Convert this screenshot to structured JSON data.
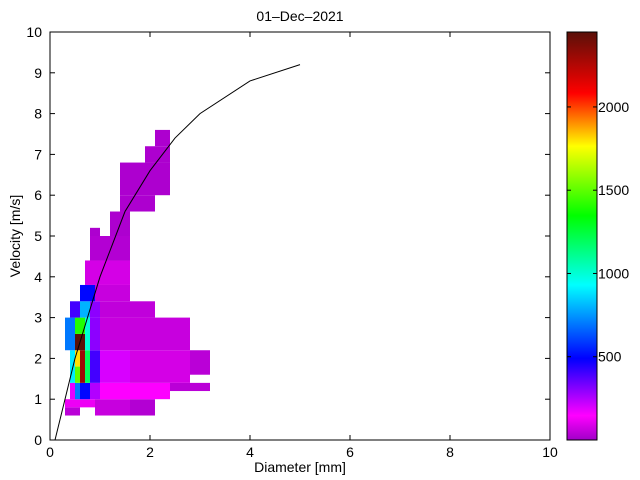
{
  "chart_data": {
    "type": "heatmap",
    "title": "01–Dec–2021",
    "xlabel": "Diameter [mm]",
    "ylabel": "Velocity [m/s]",
    "xlim": [
      0,
      10
    ],
    "ylim": [
      0,
      10
    ],
    "xticks": [
      "0",
      "2",
      "4",
      "6",
      "8",
      "10"
    ],
    "yticks": [
      "0",
      "1",
      "2",
      "3",
      "4",
      "5",
      "6",
      "7",
      "8",
      "9",
      "10"
    ],
    "grid": false,
    "colorbar": {
      "range": [
        0,
        2450
      ],
      "ticks": [
        "500",
        "1000",
        "1500",
        "2000"
      ],
      "tick_values": [
        500,
        1000,
        1500,
        2000
      ],
      "colormap": "hsv-magenta-to-darkred"
    },
    "cells": [
      {
        "d0": 0.3,
        "d1": 0.6,
        "v0": 0.6,
        "v1": 0.8,
        "count": 40
      },
      {
        "d0": 0.3,
        "d1": 0.9,
        "v0": 0.8,
        "v1": 1.0,
        "count": 120
      },
      {
        "d0": 0.9,
        "d1": 1.6,
        "v0": 0.6,
        "v1": 1.0,
        "count": 60
      },
      {
        "d0": 1.6,
        "d1": 2.1,
        "v0": 0.6,
        "v1": 1.0,
        "count": 30
      },
      {
        "d0": 0.4,
        "d1": 0.5,
        "v0": 1.0,
        "v1": 1.4,
        "count": 180
      },
      {
        "d0": 0.5,
        "d1": 0.6,
        "v0": 1.0,
        "v1": 1.4,
        "count": 700
      },
      {
        "d0": 0.6,
        "d1": 0.8,
        "v0": 1.0,
        "v1": 1.4,
        "count": 500
      },
      {
        "d0": 0.8,
        "d1": 1.0,
        "v0": 1.0,
        "v1": 1.4,
        "count": 250
      },
      {
        "d0": 1.0,
        "d1": 2.4,
        "v0": 1.0,
        "v1": 1.4,
        "count": 150
      },
      {
        "d0": 2.4,
        "d1": 3.2,
        "v0": 1.2,
        "v1": 1.4,
        "count": 40
      },
      {
        "d0": 0.4,
        "d1": 0.5,
        "v0": 1.4,
        "v1": 2.2,
        "count": 900
      },
      {
        "d0": 0.5,
        "d1": 0.6,
        "v0": 1.4,
        "v1": 1.8,
        "count": 1500
      },
      {
        "d0": 0.5,
        "d1": 0.6,
        "v0": 1.8,
        "v1": 2.2,
        "count": 1800
      },
      {
        "d0": 0.6,
        "d1": 0.7,
        "v0": 1.4,
        "v1": 2.2,
        "count": 2300
      },
      {
        "d0": 0.7,
        "d1": 0.8,
        "v0": 1.4,
        "v1": 2.2,
        "count": 1200
      },
      {
        "d0": 0.8,
        "d1": 1.0,
        "v0": 1.4,
        "v1": 2.2,
        "count": 400
      },
      {
        "d0": 1.0,
        "d1": 1.6,
        "v0": 1.4,
        "v1": 2.2,
        "count": 200
      },
      {
        "d0": 1.6,
        "d1": 2.8,
        "v0": 1.4,
        "v1": 2.2,
        "count": 80
      },
      {
        "d0": 2.8,
        "d1": 3.2,
        "v0": 1.6,
        "v1": 2.2,
        "count": 40
      },
      {
        "d0": 0.3,
        "d1": 0.5,
        "v0": 2.2,
        "v1": 3.0,
        "count": 700
      },
      {
        "d0": 0.5,
        "d1": 0.7,
        "v0": 2.2,
        "v1": 2.6,
        "count": 2450
      },
      {
        "d0": 0.5,
        "d1": 0.7,
        "v0": 2.6,
        "v1": 3.0,
        "count": 1400
      },
      {
        "d0": 0.7,
        "d1": 0.8,
        "v0": 2.2,
        "v1": 3.0,
        "count": 1000
      },
      {
        "d0": 0.8,
        "d1": 1.0,
        "v0": 2.2,
        "v1": 3.0,
        "count": 300
      },
      {
        "d0": 1.0,
        "d1": 2.8,
        "v0": 2.2,
        "v1": 3.0,
        "count": 60
      },
      {
        "d0": 0.4,
        "d1": 0.6,
        "v0": 3.0,
        "v1": 3.4,
        "count": 400
      },
      {
        "d0": 0.6,
        "d1": 0.8,
        "v0": 3.0,
        "v1": 3.4,
        "count": 800
      },
      {
        "d0": 0.8,
        "d1": 1.0,
        "v0": 3.0,
        "v1": 3.4,
        "count": 300
      },
      {
        "d0": 1.0,
        "d1": 2.1,
        "v0": 3.0,
        "v1": 3.4,
        "count": 50
      },
      {
        "d0": 0.6,
        "d1": 0.9,
        "v0": 3.4,
        "v1": 3.8,
        "count": 500
      },
      {
        "d0": 0.9,
        "d1": 1.6,
        "v0": 3.4,
        "v1": 3.8,
        "count": 60
      },
      {
        "d0": 0.7,
        "d1": 1.6,
        "v0": 3.8,
        "v1": 4.4,
        "count": 80
      },
      {
        "d0": 0.8,
        "d1": 1.6,
        "v0": 4.4,
        "v1": 5.0,
        "count": 30
      },
      {
        "d0": 0.8,
        "d1": 1.0,
        "v0": 5.0,
        "v1": 5.2,
        "count": 20
      },
      {
        "d0": 1.2,
        "d1": 1.6,
        "v0": 5.0,
        "v1": 5.6,
        "count": 20
      },
      {
        "d0": 1.4,
        "d1": 2.1,
        "v0": 5.6,
        "v1": 6.0,
        "count": 20
      },
      {
        "d0": 1.4,
        "d1": 2.4,
        "v0": 6.0,
        "v1": 6.8,
        "count": 20
      },
      {
        "d0": 1.9,
        "d1": 2.4,
        "v0": 6.8,
        "v1": 7.2,
        "count": 20
      },
      {
        "d0": 2.1,
        "d1": 2.4,
        "v0": 7.2,
        "v1": 7.6,
        "count": 20
      }
    ],
    "reference_curve": {
      "x": [
        0.1,
        0.3,
        0.5,
        0.75,
        1.0,
        1.25,
        1.5,
        2.0,
        2.5,
        3.0,
        4.0,
        5.0
      ],
      "y": [
        0.0,
        1.0,
        2.0,
        3.0,
        4.0,
        4.8,
        5.6,
        6.6,
        7.4,
        8.0,
        8.8,
        9.2
      ]
    }
  }
}
